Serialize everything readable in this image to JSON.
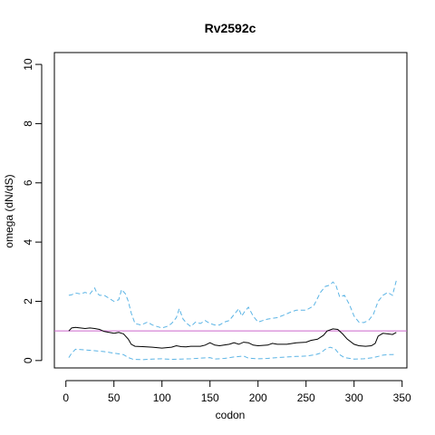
{
  "chart_data": {
    "type": "line",
    "title": "Rv2592c",
    "xlabel": "codon",
    "ylabel": "omega (dN/dS)",
    "xlim": [
      -12,
      355
    ],
    "ylim": [
      -0.25,
      10.4
    ],
    "x_ticks": [
      0,
      50,
      100,
      150,
      200,
      250,
      300,
      350
    ],
    "y_ticks": [
      0,
      2,
      4,
      6,
      8,
      10
    ],
    "reference_line": {
      "y": 1,
      "color": "#cc66cc"
    },
    "series": [
      {
        "color": "#000000",
        "dash": "solid",
        "points": [
          [
            3,
            1.0
          ],
          [
            6,
            1.1
          ],
          [
            10,
            1.12
          ],
          [
            15,
            1.1
          ],
          [
            20,
            1.08
          ],
          [
            25,
            1.1
          ],
          [
            30,
            1.08
          ],
          [
            35,
            1.05
          ],
          [
            40,
            0.98
          ],
          [
            45,
            0.95
          ],
          [
            50,
            0.92
          ],
          [
            55,
            0.95
          ],
          [
            60,
            0.9
          ],
          [
            65,
            0.72
          ],
          [
            68,
            0.55
          ],
          [
            72,
            0.48
          ],
          [
            80,
            0.47
          ],
          [
            90,
            0.45
          ],
          [
            100,
            0.42
          ],
          [
            110,
            0.45
          ],
          [
            115,
            0.5
          ],
          [
            120,
            0.47
          ],
          [
            125,
            0.46
          ],
          [
            130,
            0.48
          ],
          [
            140,
            0.48
          ],
          [
            145,
            0.52
          ],
          [
            150,
            0.6
          ],
          [
            155,
            0.52
          ],
          [
            160,
            0.5
          ],
          [
            170,
            0.55
          ],
          [
            175,
            0.6
          ],
          [
            180,
            0.55
          ],
          [
            185,
            0.62
          ],
          [
            190,
            0.6
          ],
          [
            195,
            0.52
          ],
          [
            200,
            0.5
          ],
          [
            210,
            0.52
          ],
          [
            215,
            0.58
          ],
          [
            220,
            0.55
          ],
          [
            230,
            0.55
          ],
          [
            240,
            0.6
          ],
          [
            250,
            0.62
          ],
          [
            255,
            0.68
          ],
          [
            262,
            0.72
          ],
          [
            268,
            0.85
          ],
          [
            272,
            1.0
          ],
          [
            278,
            1.07
          ],
          [
            283,
            1.05
          ],
          [
            288,
            0.9
          ],
          [
            293,
            0.72
          ],
          [
            300,
            0.55
          ],
          [
            305,
            0.5
          ],
          [
            312,
            0.48
          ],
          [
            318,
            0.5
          ],
          [
            322,
            0.58
          ],
          [
            325,
            0.82
          ],
          [
            330,
            0.92
          ],
          [
            335,
            0.9
          ],
          [
            340,
            0.88
          ],
          [
            344,
            0.95
          ]
        ]
      },
      {
        "color": "#5bb4e5",
        "dash": "dashed",
        "points": [
          [
            3,
            2.2
          ],
          [
            6,
            2.22
          ],
          [
            10,
            2.28
          ],
          [
            15,
            2.25
          ],
          [
            20,
            2.3
          ],
          [
            25,
            2.25
          ],
          [
            30,
            2.45
          ],
          [
            32,
            2.3
          ],
          [
            35,
            2.2
          ],
          [
            40,
            2.2
          ],
          [
            45,
            2.1
          ],
          [
            50,
            2.0
          ],
          [
            55,
            2.05
          ],
          [
            58,
            2.4
          ],
          [
            62,
            2.25
          ],
          [
            65,
            2.0
          ],
          [
            68,
            1.6
          ],
          [
            72,
            1.25
          ],
          [
            78,
            1.2
          ],
          [
            85,
            1.3
          ],
          [
            90,
            1.2
          ],
          [
            95,
            1.15
          ],
          [
            100,
            1.1
          ],
          [
            105,
            1.15
          ],
          [
            110,
            1.25
          ],
          [
            115,
            1.45
          ],
          [
            118,
            1.75
          ],
          [
            122,
            1.4
          ],
          [
            126,
            1.25
          ],
          [
            130,
            1.15
          ],
          [
            135,
            1.3
          ],
          [
            140,
            1.25
          ],
          [
            145,
            1.35
          ],
          [
            150,
            1.25
          ],
          [
            155,
            1.2
          ],
          [
            160,
            1.2
          ],
          [
            165,
            1.3
          ],
          [
            170,
            1.35
          ],
          [
            175,
            1.55
          ],
          [
            180,
            1.75
          ],
          [
            183,
            1.5
          ],
          [
            186,
            1.65
          ],
          [
            190,
            1.8
          ],
          [
            195,
            1.5
          ],
          [
            200,
            1.3
          ],
          [
            205,
            1.35
          ],
          [
            210,
            1.4
          ],
          [
            220,
            1.45
          ],
          [
            228,
            1.55
          ],
          [
            235,
            1.65
          ],
          [
            240,
            1.7
          ],
          [
            250,
            1.7
          ],
          [
            258,
            1.85
          ],
          [
            265,
            2.3
          ],
          [
            270,
            2.5
          ],
          [
            275,
            2.55
          ],
          [
            278,
            2.65
          ],
          [
            281,
            2.55
          ],
          [
            285,
            2.15
          ],
          [
            290,
            2.2
          ],
          [
            295,
            1.9
          ],
          [
            300,
            1.5
          ],
          [
            305,
            1.3
          ],
          [
            310,
            1.28
          ],
          [
            315,
            1.35
          ],
          [
            320,
            1.55
          ],
          [
            325,
            2.0
          ],
          [
            330,
            2.2
          ],
          [
            335,
            2.3
          ],
          [
            340,
            2.2
          ],
          [
            344,
            2.7
          ]
        ]
      },
      {
        "color": "#5bb4e5",
        "dash": "dashed",
        "points": [
          [
            3,
            0.1
          ],
          [
            6,
            0.25
          ],
          [
            10,
            0.38
          ],
          [
            20,
            0.36
          ],
          [
            30,
            0.33
          ],
          [
            40,
            0.3
          ],
          [
            50,
            0.25
          ],
          [
            60,
            0.2
          ],
          [
            65,
            0.1
          ],
          [
            70,
            0.04
          ],
          [
            80,
            0.03
          ],
          [
            90,
            0.05
          ],
          [
            100,
            0.06
          ],
          [
            110,
            0.04
          ],
          [
            120,
            0.05
          ],
          [
            130,
            0.06
          ],
          [
            140,
            0.08
          ],
          [
            150,
            0.1
          ],
          [
            155,
            0.05
          ],
          [
            165,
            0.07
          ],
          [
            175,
            0.12
          ],
          [
            185,
            0.15
          ],
          [
            190,
            0.08
          ],
          [
            200,
            0.06
          ],
          [
            210,
            0.07
          ],
          [
            220,
            0.1
          ],
          [
            230,
            0.12
          ],
          [
            240,
            0.14
          ],
          [
            250,
            0.15
          ],
          [
            260,
            0.2
          ],
          [
            265,
            0.25
          ],
          [
            270,
            0.38
          ],
          [
            275,
            0.45
          ],
          [
            280,
            0.4
          ],
          [
            285,
            0.2
          ],
          [
            290,
            0.1
          ],
          [
            300,
            0.05
          ],
          [
            310,
            0.06
          ],
          [
            320,
            0.1
          ],
          [
            325,
            0.14
          ],
          [
            330,
            0.18
          ],
          [
            335,
            0.2
          ],
          [
            340,
            0.2
          ],
          [
            344,
            0.22
          ]
        ]
      }
    ]
  }
}
